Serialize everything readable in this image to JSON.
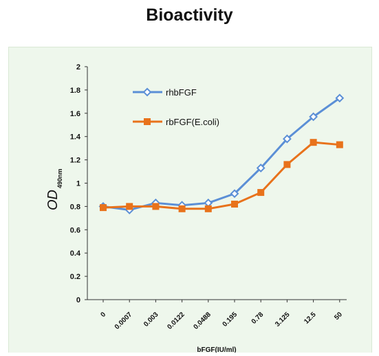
{
  "title": "Bioactivity",
  "colors": {
    "panel_background": "#eef7ec",
    "axis": "#333333",
    "series_1": "#5b8fd6",
    "series_2": "#e8721b"
  },
  "chart_data": {
    "type": "line",
    "title": "Bioactivity",
    "xlabel": "bFGF(IU/ml)",
    "ylabel_main": "OD",
    "ylabel_sub": "490nm",
    "categories": [
      "0",
      "0.0007",
      "0.003",
      "0.0122",
      "0.0488",
      "0.195",
      "0.78",
      "3.125",
      "12.5",
      "50"
    ],
    "y_ticks": [
      "0",
      "0.2",
      "0.4",
      "0.6",
      "0.8",
      "1",
      "1.2",
      "1.4",
      "1.6",
      "1.8",
      "2"
    ],
    "ylim": [
      0,
      2
    ],
    "grid": false,
    "legend_position": "top-left",
    "series": [
      {
        "name": "rhbFGF",
        "marker": "open-diamond",
        "color": "#5b8fd6",
        "values": [
          0.8,
          0.77,
          0.83,
          0.81,
          0.83,
          0.91,
          1.13,
          1.38,
          1.57,
          1.73
        ]
      },
      {
        "name": "rbFGF(E.coli)",
        "marker": "filled-square",
        "color": "#e8721b",
        "values": [
          0.79,
          0.8,
          0.8,
          0.78,
          0.78,
          0.82,
          0.92,
          1.16,
          1.35,
          1.33
        ]
      }
    ]
  }
}
